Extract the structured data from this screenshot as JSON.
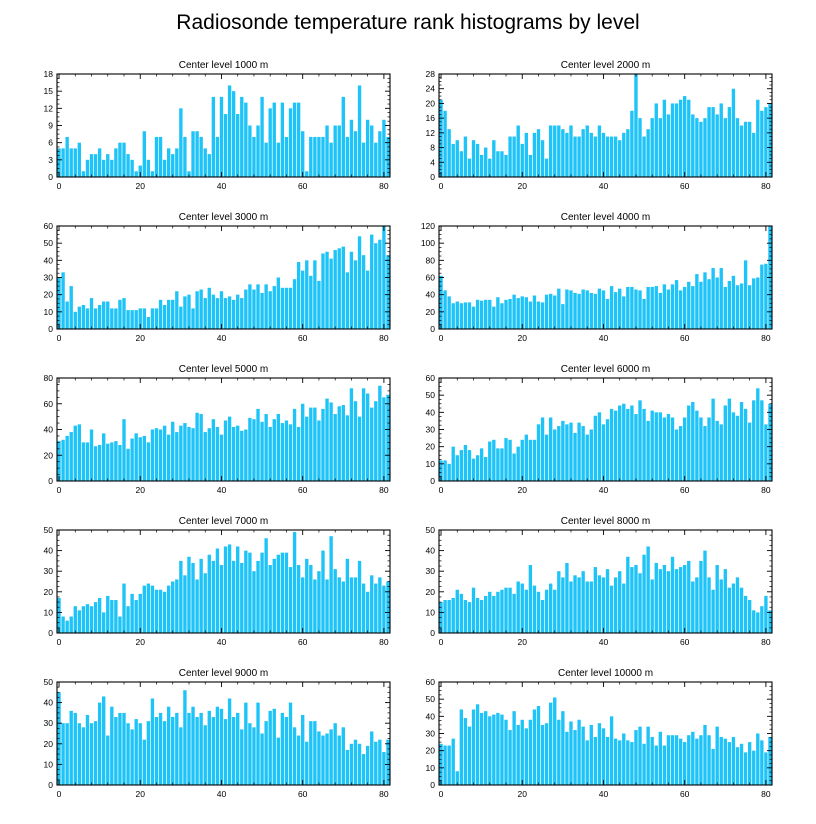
{
  "title": "Radiosonde temperature rank histograms by level",
  "colors": {
    "bar": "#1ec3f7",
    "axis": "#000000"
  },
  "chart_data": [
    {
      "type": "bar",
      "title": "Center level 1000 m",
      "xlim": [
        -0.5,
        81.5
      ],
      "xticks": [
        0,
        20,
        40,
        60,
        80
      ],
      "ylim": [
        0,
        18
      ],
      "yticks": [
        0,
        3,
        6,
        9,
        12,
        15,
        18
      ],
      "values": [
        5,
        5,
        7,
        5,
        5,
        6,
        1,
        3,
        4,
        4,
        5,
        3,
        4,
        3,
        5,
        6,
        6,
        4,
        3,
        1,
        2,
        8,
        3,
        1,
        7,
        7,
        3,
        5,
        4,
        5,
        12,
        7,
        1,
        8,
        8,
        7,
        5,
        4,
        14,
        7,
        14,
        11,
        16,
        15,
        11,
        14,
        13,
        9,
        7,
        9,
        14,
        6,
        12,
        13,
        6,
        13,
        7,
        12,
        13,
        13,
        8,
        1,
        7,
        7,
        7,
        7,
        9,
        6,
        9,
        9,
        14,
        7,
        10,
        8,
        16,
        6,
        10,
        9,
        6,
        8,
        10,
        7
      ]
    },
    {
      "type": "bar",
      "title": "Center level 2000 m",
      "xlim": [
        -0.5,
        81.5
      ],
      "xticks": [
        0,
        20,
        40,
        60,
        80
      ],
      "ylim": [
        0,
        28
      ],
      "yticks": [
        0,
        4,
        8,
        12,
        16,
        20,
        24,
        28
      ],
      "values": [
        21,
        18,
        13,
        9,
        10,
        7,
        11,
        5,
        10,
        9,
        6,
        8,
        5,
        10,
        7,
        7,
        6,
        11,
        11,
        14,
        9,
        12,
        6,
        12,
        13,
        10,
        5,
        14,
        14,
        14,
        13,
        12,
        14,
        11,
        11,
        13,
        14,
        12,
        11,
        14,
        12,
        11,
        11,
        11,
        10,
        12,
        13,
        18,
        28,
        16,
        11,
        13,
        16,
        20,
        16,
        21,
        17,
        20,
        20,
        21,
        22,
        21,
        17,
        16,
        15,
        16,
        19,
        19,
        17,
        20,
        16,
        19,
        24,
        16,
        14,
        15,
        15,
        12,
        21,
        18,
        19,
        20
      ]
    },
    {
      "type": "bar",
      "title": "Center level 3000 m",
      "xlim": [
        -0.5,
        81.5
      ],
      "xticks": [
        0,
        20,
        40,
        60,
        80
      ],
      "ylim": [
        0,
        60
      ],
      "yticks": [
        0,
        10,
        20,
        30,
        40,
        50,
        60
      ],
      "values": [
        30,
        33,
        16,
        25,
        10,
        13,
        14,
        12,
        18,
        12,
        14,
        16,
        16,
        12,
        12,
        17,
        18,
        11,
        11,
        11,
        12,
        12,
        7,
        12,
        12,
        17,
        14,
        17,
        17,
        22,
        13,
        19,
        20,
        12,
        22,
        23,
        18,
        24,
        20,
        18,
        22,
        18,
        19,
        17,
        20,
        18,
        23,
        26,
        23,
        26,
        21,
        26,
        22,
        25,
        30,
        24,
        24,
        24,
        29,
        39,
        34,
        40,
        31,
        40,
        28,
        44,
        45,
        41,
        46,
        47,
        48,
        33,
        45,
        40,
        54,
        43,
        34,
        55,
        50,
        52,
        60,
        43
      ]
    },
    {
      "type": "bar",
      "title": "Center level 4000 m",
      "xlim": [
        -0.5,
        81.5
      ],
      "xticks": [
        0,
        20,
        40,
        60,
        80
      ],
      "ylim": [
        0,
        120
      ],
      "yticks": [
        0,
        20,
        40,
        60,
        80,
        100,
        120
      ],
      "values": [
        62,
        45,
        38,
        30,
        32,
        30,
        31,
        31,
        26,
        34,
        33,
        34,
        34,
        26,
        37,
        30,
        34,
        35,
        40,
        36,
        38,
        37,
        32,
        39,
        32,
        31,
        40,
        41,
        39,
        47,
        29,
        46,
        45,
        42,
        41,
        46,
        45,
        42,
        41,
        47,
        45,
        35,
        50,
        43,
        47,
        38,
        49,
        49,
        46,
        45,
        35,
        49,
        49,
        50,
        42,
        52,
        46,
        52,
        57,
        45,
        49,
        55,
        50,
        64,
        55,
        66,
        58,
        71,
        60,
        71,
        49,
        56,
        62,
        51,
        53,
        80,
        51,
        59,
        60,
        75,
        76,
        120
      ]
    },
    {
      "type": "bar",
      "title": "Center level 5000 m",
      "xlim": [
        -0.5,
        81.5
      ],
      "xticks": [
        0,
        20,
        40,
        60,
        80
      ],
      "ylim": [
        0,
        80
      ],
      "yticks": [
        0,
        20,
        40,
        60,
        80
      ],
      "values": [
        31,
        32,
        35,
        38,
        43,
        44,
        30,
        30,
        40,
        27,
        28,
        37,
        29,
        30,
        31,
        28,
        48,
        25,
        33,
        37,
        34,
        35,
        30,
        40,
        41,
        40,
        43,
        36,
        46,
        38,
        43,
        45,
        42,
        41,
        53,
        52,
        38,
        41,
        48,
        42,
        36,
        47,
        50,
        42,
        43,
        39,
        40,
        49,
        48,
        56,
        46,
        52,
        42,
        48,
        52,
        45,
        47,
        44,
        56,
        42,
        60,
        50,
        57,
        57,
        47,
        56,
        64,
        61,
        52,
        58,
        59,
        51,
        72,
        62,
        50,
        72,
        68,
        57,
        62,
        74,
        65,
        67
      ]
    },
    {
      "type": "bar",
      "title": "Center level 6000 m",
      "xlim": [
        -0.5,
        81.5
      ],
      "xticks": [
        0,
        20,
        40,
        60,
        80
      ],
      "ylim": [
        0,
        60
      ],
      "yticks": [
        0,
        10,
        20,
        30,
        40,
        50,
        60
      ],
      "values": [
        12,
        12,
        10,
        20,
        15,
        18,
        21,
        18,
        13,
        15,
        19,
        14,
        23,
        24,
        19,
        19,
        25,
        24,
        16,
        20,
        24,
        27,
        24,
        24,
        33,
        37,
        27,
        37,
        30,
        32,
        35,
        33,
        34,
        28,
        34,
        32,
        27,
        30,
        38,
        40,
        33,
        36,
        42,
        41,
        44,
        45,
        42,
        44,
        39,
        47,
        42,
        35,
        41,
        40,
        40,
        37,
        39,
        37,
        30,
        32,
        37,
        44,
        46,
        41,
        37,
        32,
        37,
        48,
        35,
        33,
        44,
        48,
        40,
        38,
        46,
        42,
        34,
        47,
        54,
        47,
        33,
        45
      ]
    },
    {
      "type": "bar",
      "title": "Center level 7000 m",
      "xlim": [
        -0.5,
        81.5
      ],
      "xticks": [
        0,
        20,
        40,
        60,
        80
      ],
      "ylim": [
        0,
        50
      ],
      "yticks": [
        0,
        10,
        20,
        30,
        40,
        50
      ],
      "values": [
        17,
        8,
        6,
        8,
        13,
        11,
        13,
        14,
        13,
        15,
        17,
        10,
        18,
        16,
        16,
        8,
        24,
        13,
        19,
        16,
        19,
        23,
        24,
        23,
        21,
        21,
        20,
        23,
        25,
        26,
        35,
        28,
        37,
        34,
        26,
        36,
        29,
        38,
        35,
        41,
        33,
        42,
        43,
        35,
        42,
        34,
        40,
        39,
        30,
        35,
        39,
        46,
        33,
        36,
        38,
        39,
        39,
        32,
        49,
        33,
        27,
        36,
        33,
        26,
        30,
        40,
        26,
        47,
        31,
        27,
        25,
        36,
        27,
        27,
        35,
        24,
        20,
        28,
        24,
        27,
        23,
        25
      ]
    },
    {
      "type": "bar",
      "title": "Center level 8000 m",
      "xlim": [
        -0.5,
        81.5
      ],
      "xticks": [
        0,
        20,
        40,
        60,
        80
      ],
      "ylim": [
        0,
        50
      ],
      "yticks": [
        0,
        10,
        20,
        30,
        40,
        50
      ],
      "values": [
        15,
        16,
        16,
        17,
        21,
        19,
        16,
        15,
        22,
        17,
        16,
        18,
        20,
        18,
        20,
        21,
        22,
        22,
        19,
        25,
        24,
        21,
        33,
        23,
        20,
        16,
        21,
        24,
        21,
        30,
        27,
        34,
        25,
        28,
        27,
        30,
        25,
        25,
        32,
        28,
        27,
        31,
        23,
        27,
        30,
        24,
        37,
        32,
        33,
        29,
        38,
        42,
        26,
        34,
        31,
        33,
        30,
        37,
        31,
        32,
        33,
        35,
        25,
        27,
        35,
        40,
        27,
        21,
        33,
        26,
        31,
        22,
        24,
        27,
        22,
        18,
        16,
        11,
        10,
        13,
        18,
        11
      ]
    },
    {
      "type": "bar",
      "title": "Center level 9000 m",
      "xlim": [
        -0.5,
        81.5
      ],
      "xticks": [
        0,
        20,
        40,
        60,
        80
      ],
      "ylim": [
        0,
        50
      ],
      "yticks": [
        0,
        10,
        20,
        30,
        40,
        50
      ],
      "values": [
        45,
        30,
        30,
        36,
        35,
        30,
        28,
        34,
        30,
        31,
        40,
        43,
        24,
        38,
        33,
        35,
        35,
        30,
        27,
        32,
        30,
        22,
        31,
        42,
        33,
        35,
        31,
        38,
        33,
        35,
        28,
        46,
        35,
        38,
        33,
        35,
        29,
        36,
        33,
        38,
        37,
        32,
        42,
        33,
        35,
        27,
        40,
        30,
        28,
        40,
        25,
        31,
        36,
        37,
        23,
        35,
        33,
        40,
        28,
        24,
        34,
        21,
        31,
        31,
        26,
        24,
        25,
        27,
        30,
        24,
        28,
        17,
        20,
        22,
        20,
        15,
        19,
        26,
        21,
        22,
        16,
        22
      ]
    },
    {
      "type": "bar",
      "title": "Center level 10000 m",
      "xlim": [
        -0.5,
        81.5
      ],
      "xticks": [
        0,
        20,
        40,
        60,
        80
      ],
      "ylim": [
        0,
        60
      ],
      "yticks": [
        0,
        10,
        20,
        30,
        40,
        50,
        60
      ],
      "values": [
        24,
        23,
        23,
        27,
        8,
        44,
        39,
        34,
        44,
        47,
        42,
        43,
        40,
        41,
        42,
        41,
        38,
        32,
        43,
        35,
        38,
        33,
        38,
        44,
        46,
        35,
        36,
        48,
        51,
        38,
        43,
        31,
        37,
        32,
        38,
        34,
        26,
        35,
        28,
        36,
        33,
        28,
        40,
        27,
        26,
        30,
        26,
        25,
        32,
        34,
        24,
        34,
        28,
        23,
        31,
        23,
        29,
        29,
        29,
        27,
        25,
        29,
        31,
        27,
        29,
        35,
        29,
        21,
        34,
        28,
        27,
        25,
        28,
        22,
        24,
        19,
        25,
        20,
        30,
        26,
        19,
        28
      ]
    }
  ]
}
